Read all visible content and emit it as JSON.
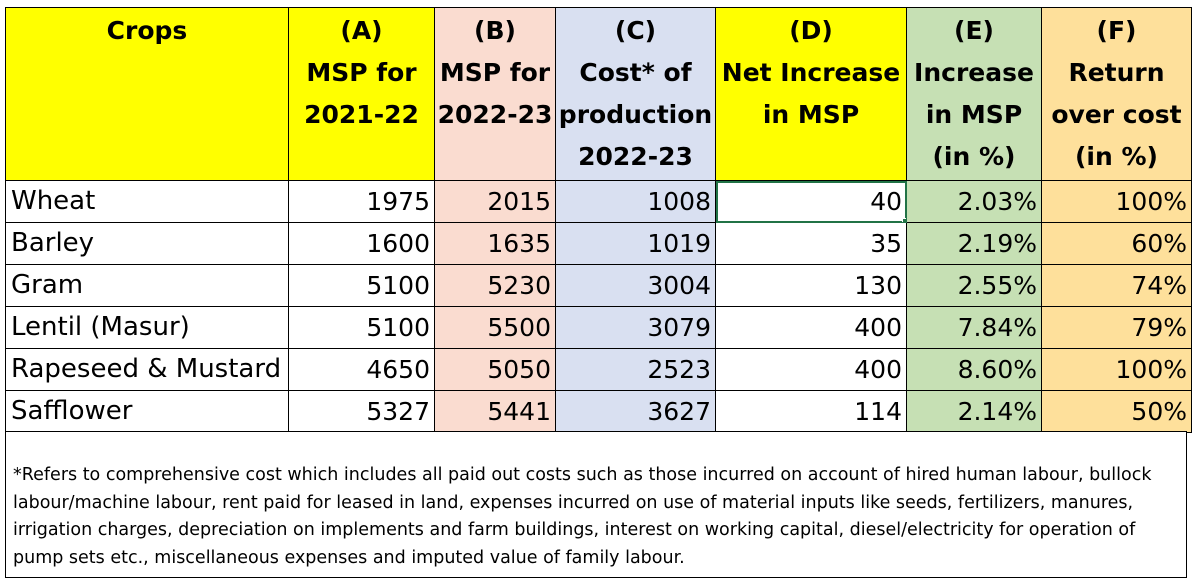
{
  "table": {
    "headers": [
      [
        "Crops"
      ],
      [
        "(A)",
        "MSP for",
        "2021-22"
      ],
      [
        "(B)",
        "MSP for",
        "2022-23"
      ],
      [
        "(C)",
        "Cost* of",
        "production",
        "2022-23"
      ],
      [
        "(D)",
        "Net Increase",
        "in MSP"
      ],
      [
        "(E)",
        "Increase",
        "in MSP",
        "(in %)"
      ],
      [
        "(F)",
        "Return",
        "over cost",
        "(in %)"
      ]
    ],
    "rows": [
      [
        "Wheat",
        "1975",
        "2015",
        "1008",
        "40",
        "2.03%",
        "100%"
      ],
      [
        "Barley",
        "1600",
        "1635",
        "1019",
        "35",
        "2.19%",
        "60%"
      ],
      [
        "Gram",
        "5100",
        "5230",
        "3004",
        "130",
        "2.55%",
        "74%"
      ],
      [
        "Lentil (Masur)",
        "5100",
        "5500",
        "3079",
        "400",
        "7.84%",
        "79%"
      ],
      [
        "Rapeseed & Mustard",
        "4650",
        "5050",
        "2523",
        "400",
        "8.60%",
        "100%"
      ],
      [
        "Safflower",
        "5327",
        "5441",
        "3627",
        "114",
        "2.14%",
        "50%"
      ]
    ],
    "header_colors": [
      "#ffff00",
      "#ffff00",
      "#fadcd0",
      "#d9e0f1",
      "#ffff00",
      "#c6e0b4",
      "#fee09b"
    ],
    "selected_cell": "Wheat / (D) Net Increase in MSP"
  },
  "footnote": "*Refers to comprehensive cost which includes all paid out costs such as those incurred on account of hired human labour, bullock labour/machine labour, rent paid for leased in land, expenses incurred on use of material inputs like seeds, fertilizers, manures, irrigation charges, depreciation on implements and farm buildings, interest on working capital, diesel/electricity for operation of pump sets etc., miscellaneous expenses and imputed value of family labour."
}
